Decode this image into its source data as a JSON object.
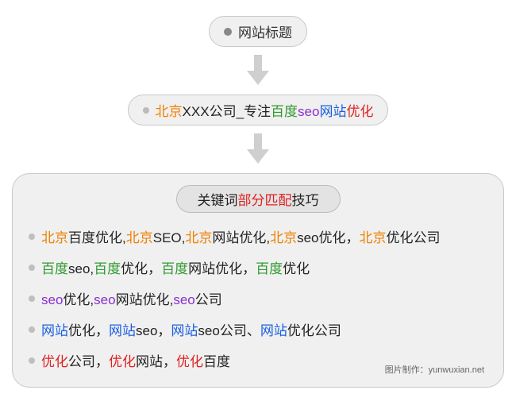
{
  "type": "flowchart",
  "background_color": "#ffffff",
  "box_bg": "#f0f0f0",
  "box_border": "#c8c8c8",
  "arrow_color": "#cfcfcf",
  "font_family": "Microsoft YaHei",
  "colors": {
    "orange": "#f08000",
    "black": "#222222",
    "green": "#2e9a2e",
    "purple": "#8a2fd0",
    "blue": "#1a5fe0",
    "red": "#e02020",
    "gray": "#333333"
  },
  "top_pill": {
    "label": "网站标题",
    "dot_color": "#888888"
  },
  "example_pill": {
    "segments": [
      {
        "text": "北京",
        "color": "orange"
      },
      {
        "text": "XXX公司_专注",
        "color": "black"
      },
      {
        "text": "百度",
        "color": "green"
      },
      {
        "text": "seo",
        "color": "purple"
      },
      {
        "text": "网站",
        "color": "blue"
      },
      {
        "text": "优化",
        "color": "red"
      }
    ]
  },
  "section_header": {
    "segments": [
      {
        "text": "关键词",
        "color": "black"
      },
      {
        "text": "部分匹配",
        "color": "red"
      },
      {
        "text": "技巧",
        "color": "black"
      }
    ]
  },
  "keyword_lines": [
    [
      {
        "text": "北京",
        "color": "orange"
      },
      {
        "text": "百度优化,",
        "color": "black"
      },
      {
        "text": "北京",
        "color": "orange"
      },
      {
        "text": "SEO,",
        "color": "black"
      },
      {
        "text": "北京",
        "color": "orange"
      },
      {
        "text": "网站优化,",
        "color": "black"
      },
      {
        "text": "北京",
        "color": "orange"
      },
      {
        "text": "seo优化，",
        "color": "black"
      },
      {
        "text": "北京",
        "color": "orange"
      },
      {
        "text": "优化公司",
        "color": "black"
      }
    ],
    [
      {
        "text": "百度",
        "color": "green"
      },
      {
        "text": "seo,",
        "color": "black"
      },
      {
        "text": "百度",
        "color": "green"
      },
      {
        "text": "优化，",
        "color": "black"
      },
      {
        "text": "百度",
        "color": "green"
      },
      {
        "text": "网站优化，",
        "color": "black"
      },
      {
        "text": "百度",
        "color": "green"
      },
      {
        "text": "优化",
        "color": "black"
      }
    ],
    [
      {
        "text": "seo",
        "color": "purple"
      },
      {
        "text": "优化,",
        "color": "black"
      },
      {
        "text": "seo",
        "color": "purple"
      },
      {
        "text": "网站优化,",
        "color": "black"
      },
      {
        "text": "seo",
        "color": "purple"
      },
      {
        "text": "公司",
        "color": "black"
      }
    ],
    [
      {
        "text": "网站",
        "color": "blue"
      },
      {
        "text": "优化，",
        "color": "black"
      },
      {
        "text": "网站",
        "color": "blue"
      },
      {
        "text": "seo，",
        "color": "black"
      },
      {
        "text": "网站",
        "color": "blue"
      },
      {
        "text": "seo公司、",
        "color": "black"
      },
      {
        "text": "网站",
        "color": "blue"
      },
      {
        "text": "优化公司",
        "color": "black"
      }
    ],
    [
      {
        "text": "优化",
        "color": "red"
      },
      {
        "text": "公司，",
        "color": "black"
      },
      {
        "text": "优化",
        "color": "red"
      },
      {
        "text": "网站，",
        "color": "black"
      },
      {
        "text": "优化",
        "color": "red"
      },
      {
        "text": "百度",
        "color": "black"
      }
    ]
  ],
  "credit": "图片制作：yunwuxian.net"
}
